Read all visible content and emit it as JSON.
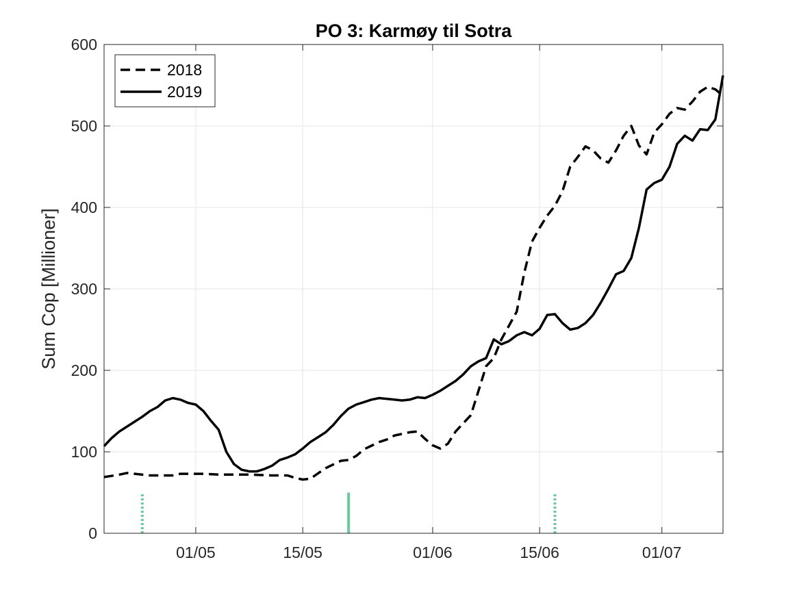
{
  "chart_data": {
    "type": "line",
    "title": "PO 3: Karmøy til Sotra",
    "xlabel": "",
    "ylabel": "Sum Cop [Millioner]",
    "x_range": [
      "2019-04-19",
      "2019-07-09"
    ],
    "ylim": [
      0,
      600
    ],
    "yticks": [
      0,
      100,
      200,
      300,
      400,
      500,
      600
    ],
    "xticks": [
      {
        "date": "2019-05-01",
        "label": "01/05"
      },
      {
        "date": "2019-05-15",
        "label": "15/05"
      },
      {
        "date": "2019-06-01",
        "label": "01/06"
      },
      {
        "date": "2019-06-15",
        "label": "15/06"
      },
      {
        "date": "2019-07-01",
        "label": "01/07"
      }
    ],
    "grid": true,
    "legend_position": "top-left",
    "series": [
      {
        "name": "2018",
        "style": "dashed",
        "color": "#000000",
        "points": [
          [
            "2019-04-19",
            69
          ],
          [
            "2019-04-21",
            72
          ],
          [
            "2019-04-22",
            74
          ],
          [
            "2019-04-23",
            73
          ],
          [
            "2019-04-25",
            71
          ],
          [
            "2019-04-28",
            71
          ],
          [
            "2019-04-29",
            73
          ],
          [
            "2019-05-02",
            73
          ],
          [
            "2019-05-04",
            72
          ],
          [
            "2019-05-08",
            72
          ],
          [
            "2019-05-11",
            71
          ],
          [
            "2019-05-13",
            71
          ],
          [
            "2019-05-14",
            68
          ],
          [
            "2019-05-15",
            66
          ],
          [
            "2019-05-16",
            67
          ],
          [
            "2019-05-18",
            80
          ],
          [
            "2019-05-20",
            89
          ],
          [
            "2019-05-21",
            90
          ],
          [
            "2019-05-22",
            95
          ],
          [
            "2019-05-23",
            103
          ],
          [
            "2019-05-25",
            112
          ],
          [
            "2019-05-26",
            115
          ],
          [
            "2019-05-27",
            120
          ],
          [
            "2019-05-29",
            124
          ],
          [
            "2019-05-30",
            125
          ],
          [
            "2019-05-31",
            116
          ],
          [
            "2019-06-01",
            108
          ],
          [
            "2019-06-02",
            104
          ],
          [
            "2019-06-03",
            110
          ],
          [
            "2019-06-04",
            125
          ],
          [
            "2019-06-05",
            135
          ],
          [
            "2019-06-06",
            145
          ],
          [
            "2019-06-07",
            175
          ],
          [
            "2019-06-08",
            205
          ],
          [
            "2019-06-09",
            215
          ],
          [
            "2019-06-10",
            238
          ],
          [
            "2019-06-11",
            255
          ],
          [
            "2019-06-12",
            272
          ],
          [
            "2019-06-13",
            320
          ],
          [
            "2019-06-14",
            358
          ],
          [
            "2019-06-15",
            375
          ],
          [
            "2019-06-16",
            390
          ],
          [
            "2019-06-17",
            402
          ],
          [
            "2019-06-18",
            420
          ],
          [
            "2019-06-19",
            450
          ],
          [
            "2019-06-20",
            462
          ],
          [
            "2019-06-21",
            475
          ],
          [
            "2019-06-22",
            470
          ],
          [
            "2019-06-23",
            460
          ],
          [
            "2019-06-24",
            455
          ],
          [
            "2019-06-25",
            470
          ],
          [
            "2019-06-26",
            488
          ],
          [
            "2019-06-27",
            500
          ],
          [
            "2019-06-28",
            476
          ],
          [
            "2019-06-29",
            465
          ],
          [
            "2019-06-30",
            492
          ],
          [
            "2019-07-01",
            502
          ],
          [
            "2019-07-02",
            515
          ],
          [
            "2019-07-03",
            522
          ],
          [
            "2019-07-04",
            520
          ],
          [
            "2019-07-05",
            530
          ],
          [
            "2019-07-06",
            542
          ],
          [
            "2019-07-07",
            548
          ],
          [
            "2019-07-08",
            545
          ],
          [
            "2019-07-09",
            537
          ]
        ]
      },
      {
        "name": "2019",
        "style": "solid",
        "color": "#000000",
        "points": [
          [
            "2019-04-19",
            107
          ],
          [
            "2019-04-20",
            117
          ],
          [
            "2019-04-21",
            125
          ],
          [
            "2019-04-22",
            131
          ],
          [
            "2019-04-23",
            137
          ],
          [
            "2019-04-24",
            143
          ],
          [
            "2019-04-25",
            150
          ],
          [
            "2019-04-26",
            155
          ],
          [
            "2019-04-27",
            163
          ],
          [
            "2019-04-28",
            166
          ],
          [
            "2019-04-29",
            164
          ],
          [
            "2019-04-30",
            160
          ],
          [
            "2019-05-01",
            158
          ],
          [
            "2019-05-02",
            150
          ],
          [
            "2019-05-03",
            138
          ],
          [
            "2019-05-04",
            127
          ],
          [
            "2019-05-05",
            100
          ],
          [
            "2019-05-06",
            85
          ],
          [
            "2019-05-07",
            78
          ],
          [
            "2019-05-08",
            76
          ],
          [
            "2019-05-09",
            76
          ],
          [
            "2019-05-10",
            79
          ],
          [
            "2019-05-11",
            83
          ],
          [
            "2019-05-12",
            90
          ],
          [
            "2019-05-13",
            93
          ],
          [
            "2019-05-14",
            97
          ],
          [
            "2019-05-15",
            104
          ],
          [
            "2019-05-16",
            112
          ],
          [
            "2019-05-17",
            118
          ],
          [
            "2019-05-18",
            124
          ],
          [
            "2019-05-19",
            133
          ],
          [
            "2019-05-20",
            144
          ],
          [
            "2019-05-21",
            153
          ],
          [
            "2019-05-22",
            158
          ],
          [
            "2019-05-23",
            161
          ],
          [
            "2019-05-24",
            164
          ],
          [
            "2019-05-25",
            166
          ],
          [
            "2019-05-26",
            165
          ],
          [
            "2019-05-27",
            164
          ],
          [
            "2019-05-28",
            163
          ],
          [
            "2019-05-29",
            164
          ],
          [
            "2019-05-30",
            167
          ],
          [
            "2019-05-31",
            166
          ],
          [
            "2019-06-01",
            170
          ],
          [
            "2019-06-02",
            175
          ],
          [
            "2019-06-03",
            181
          ],
          [
            "2019-06-04",
            187
          ],
          [
            "2019-06-05",
            195
          ],
          [
            "2019-06-06",
            205
          ],
          [
            "2019-06-07",
            211
          ],
          [
            "2019-06-08",
            215
          ],
          [
            "2019-06-09",
            238
          ],
          [
            "2019-06-10",
            232
          ],
          [
            "2019-06-11",
            236
          ],
          [
            "2019-06-12",
            243
          ],
          [
            "2019-06-13",
            247
          ],
          [
            "2019-06-14",
            243
          ],
          [
            "2019-06-15",
            251
          ],
          [
            "2019-06-16",
            268
          ],
          [
            "2019-06-17",
            269
          ],
          [
            "2019-06-18",
            258
          ],
          [
            "2019-06-19",
            250
          ],
          [
            "2019-06-20",
            252
          ],
          [
            "2019-06-21",
            258
          ],
          [
            "2019-06-22",
            268
          ],
          [
            "2019-06-23",
            283
          ],
          [
            "2019-06-24",
            300
          ],
          [
            "2019-06-25",
            318
          ],
          [
            "2019-06-26",
            322
          ],
          [
            "2019-06-27",
            338
          ],
          [
            "2019-06-28",
            375
          ],
          [
            "2019-06-29",
            422
          ],
          [
            "2019-06-30",
            430
          ],
          [
            "2019-07-01",
            434
          ],
          [
            "2019-07-02",
            450
          ],
          [
            "2019-07-03",
            478
          ],
          [
            "2019-07-04",
            488
          ],
          [
            "2019-07-05",
            482
          ],
          [
            "2019-07-06",
            496
          ],
          [
            "2019-07-07",
            495
          ],
          [
            "2019-07-08",
            508
          ],
          [
            "2019-07-09",
            562
          ]
        ]
      }
    ],
    "markers": [
      {
        "date": "2019-04-24",
        "style": "dotted",
        "y_top": 50,
        "color": "#66CC99"
      },
      {
        "date": "2019-05-21",
        "style": "solid",
        "y_top": 50,
        "color": "#66CC99"
      },
      {
        "date": "2019-06-17",
        "style": "dotted",
        "y_top": 50,
        "color": "#66CC99"
      }
    ]
  }
}
